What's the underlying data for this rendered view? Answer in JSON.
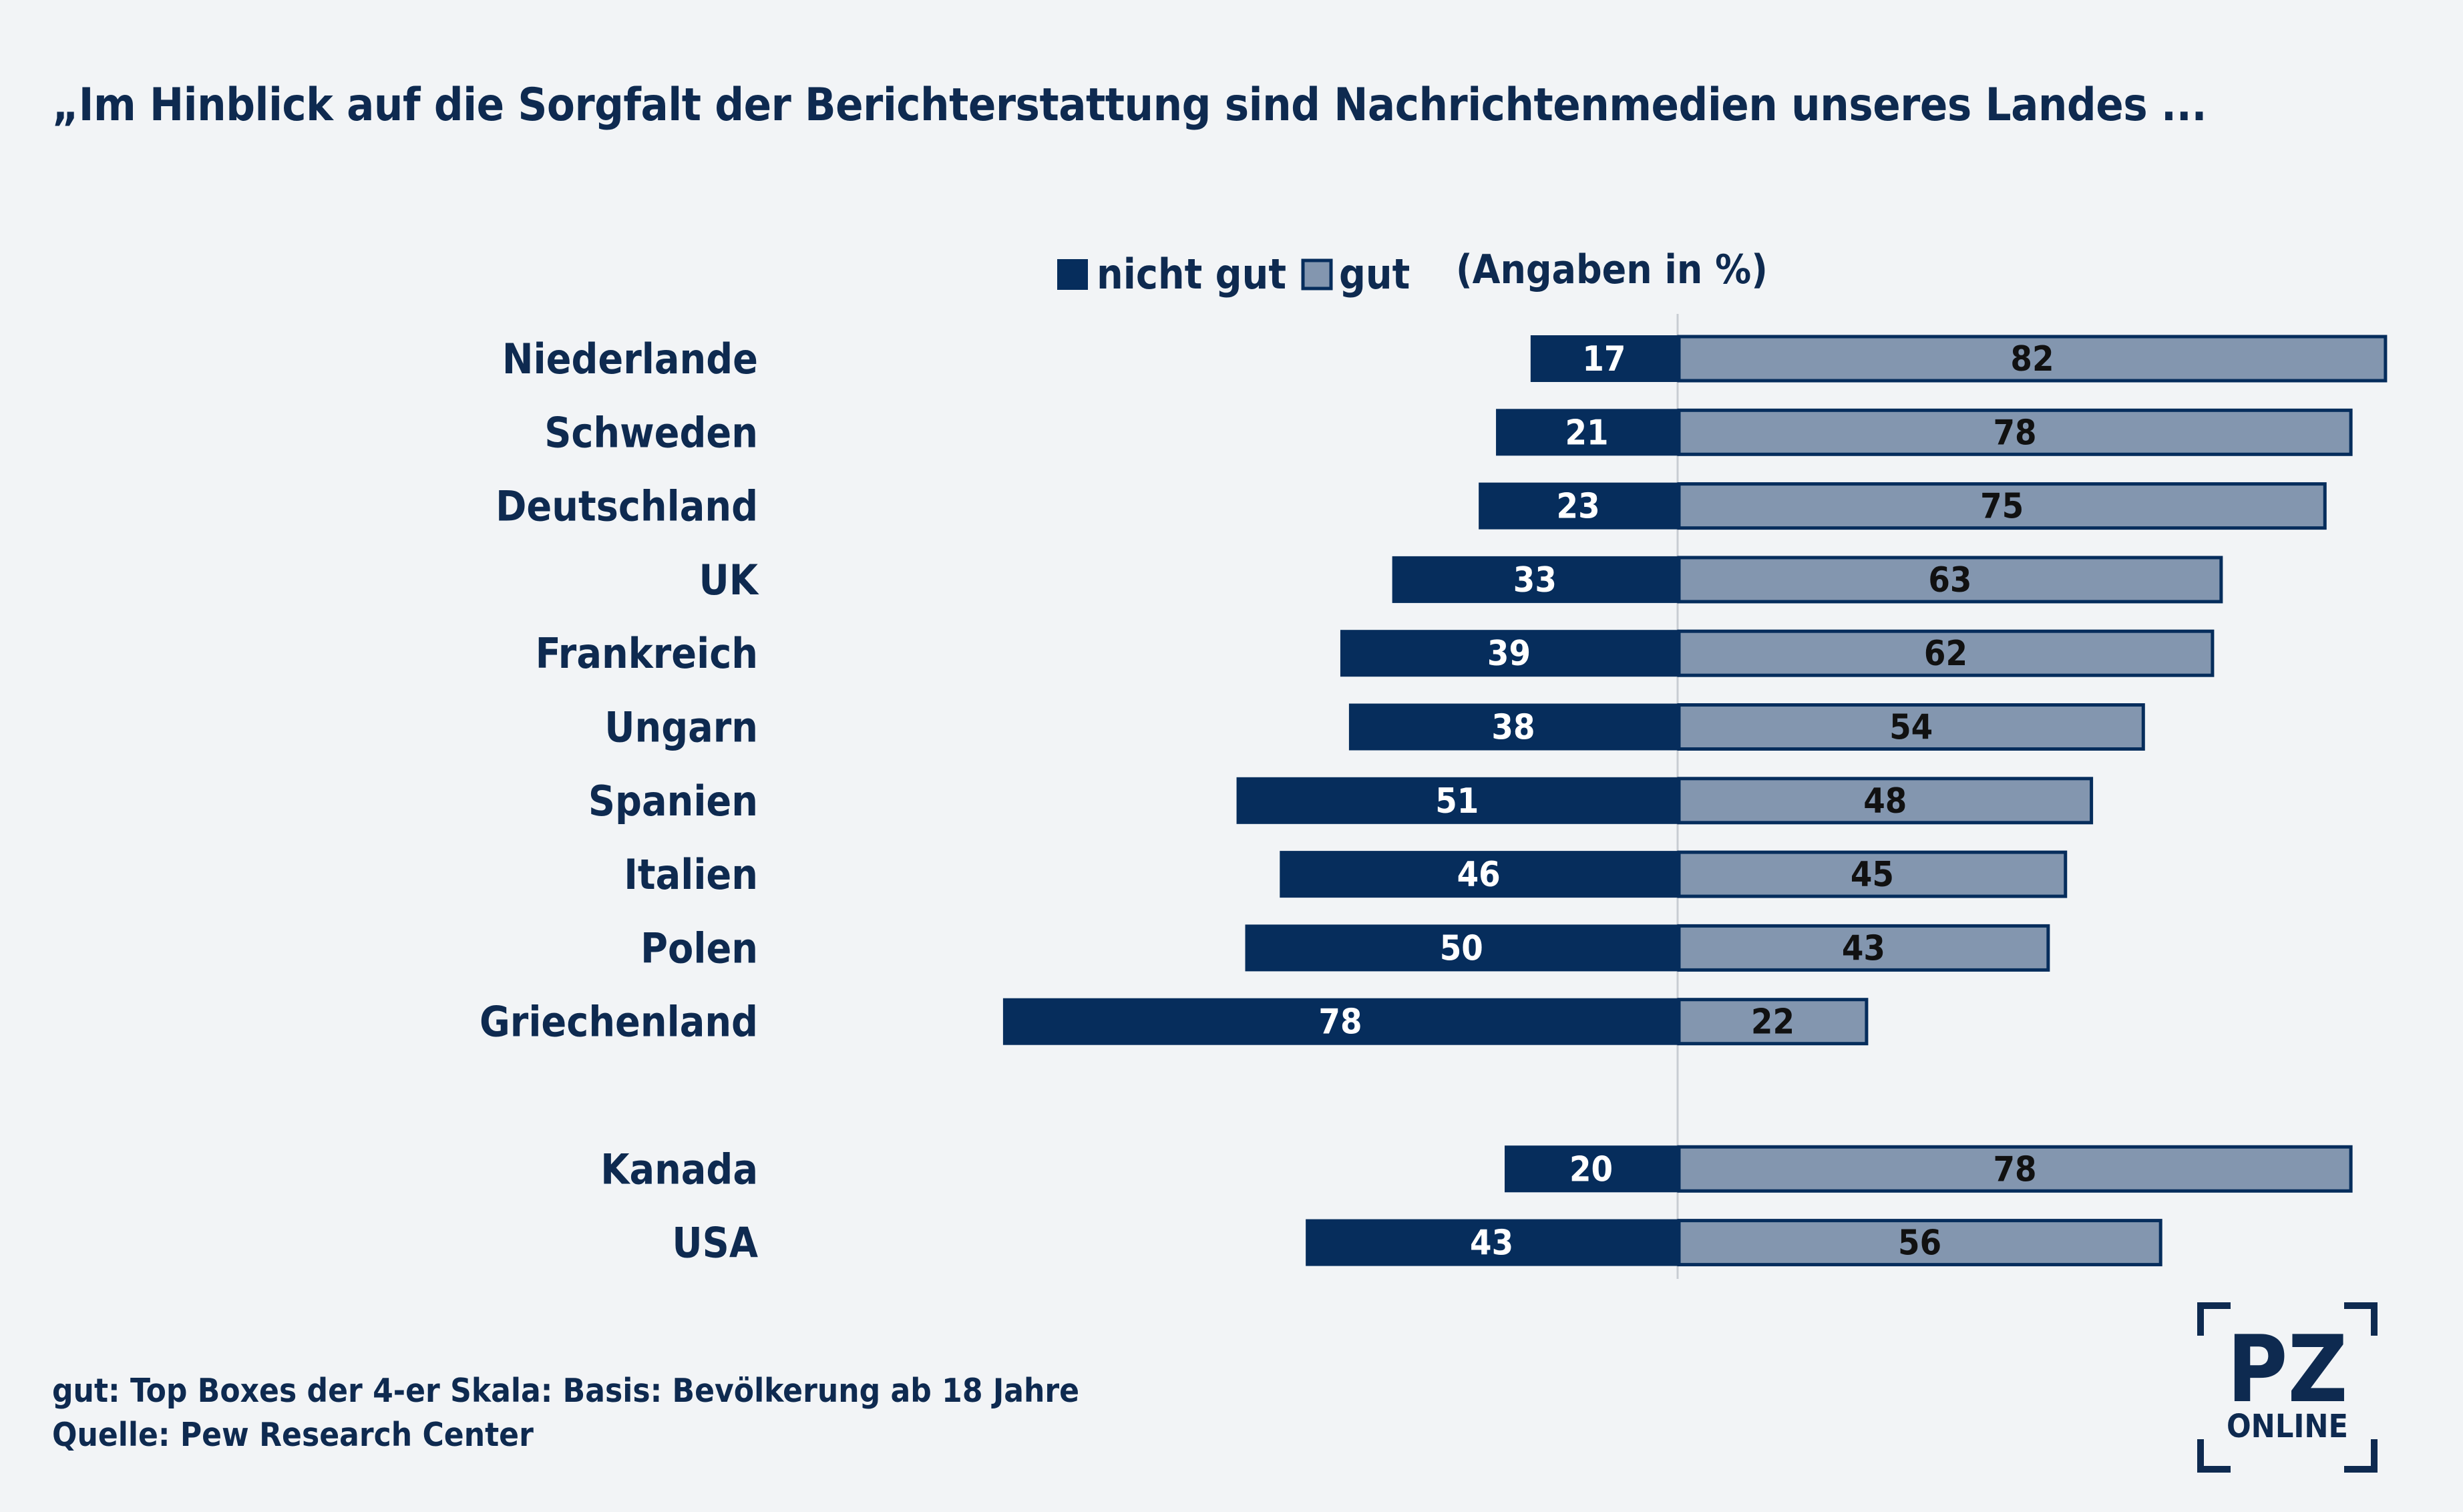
{
  "title": "„Im Hinblick auf die Sorgfalt der Berichterstattung sind Nachrichtenmedien unseres Landes ...",
  "colors": {
    "nicht_gut": "#062d5c",
    "gut": "#8396af",
    "text": "#0e2a50",
    "background": "#f2f4f6"
  },
  "chart_data": {
    "type": "bar",
    "orientation": "horizontal-diverging",
    "unit_note": "(Angaben in %)",
    "categories": [
      "Niederlande",
      "Schweden",
      "Deutschland",
      "UK",
      "Frankreich",
      "Ungarn",
      "Spanien",
      "Italien",
      "Polen",
      "Griechenland",
      "Kanada",
      "USA"
    ],
    "series": [
      {
        "name": "nicht gut",
        "values": [
          17,
          21,
          23,
          33,
          39,
          38,
          51,
          46,
          50,
          78,
          20,
          43
        ]
      },
      {
        "name": "gut",
        "values": [
          82,
          78,
          75,
          63,
          62,
          54,
          48,
          45,
          43,
          22,
          78,
          56
        ]
      }
    ],
    "legend_position": "top-center",
    "grid": false
  },
  "footer": {
    "note": "gut: Top Boxes der 4-er Skala: Basis: Bevölkerung ab 18 Jahre",
    "source": "Quelle: Pew Research Center"
  },
  "logo": {
    "main": "PZ",
    "sub": "ONLINE"
  }
}
